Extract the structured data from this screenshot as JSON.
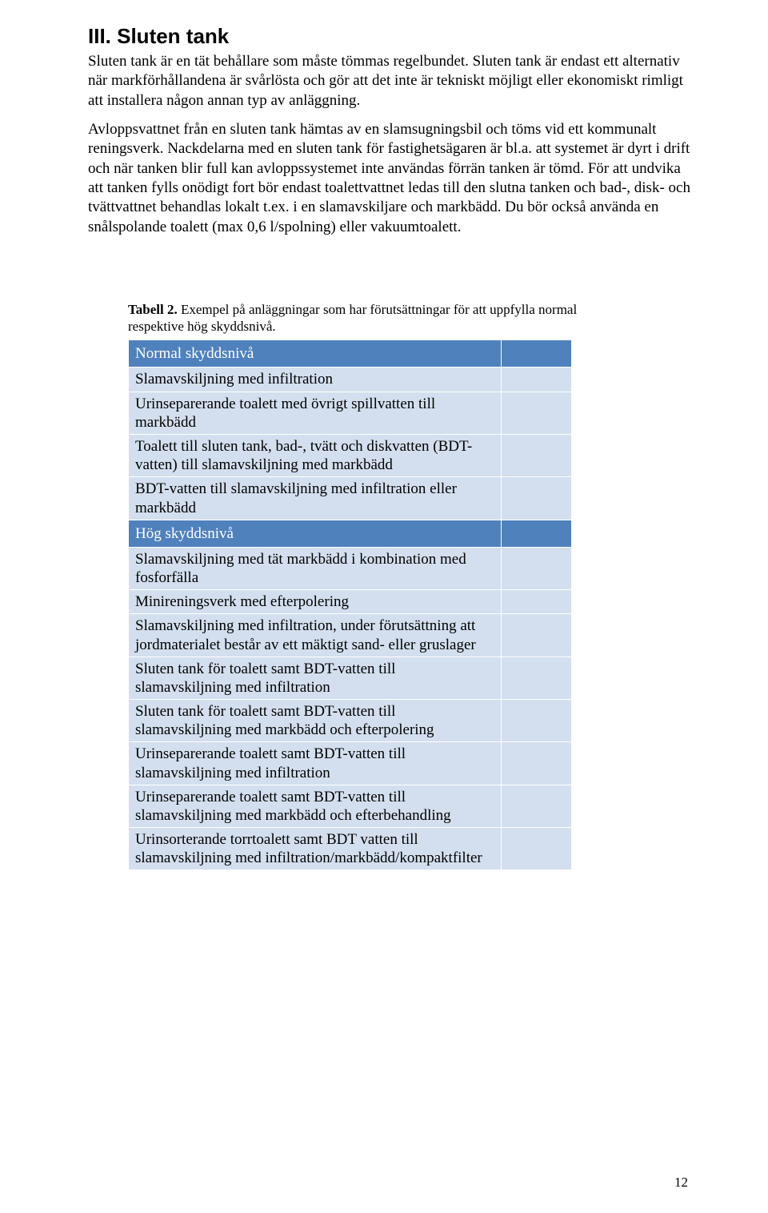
{
  "heading": "III. Sluten tank",
  "intro": "Sluten tank är en tät behållare som måste tömmas regelbundet. Sluten tank är endast ett alternativ när markförhållandena är svårlösta och gör att det inte är tekniskt möjligt eller ekonomiskt rimligt att installera någon annan typ av anläggning.",
  "body": "Avloppsvattnet från en sluten tank hämtas av en slamsugningsbil och töms vid ett kommunalt reningsverk. Nackdelarna med en sluten tank för fastighetsägaren är bl.a. att systemet är dyrt i drift och när tanken blir full kan avloppssystemet inte användas förrän tanken är tömd. För att undvika att tanken fylls onödigt fort bör endast toalettvattnet ledas till den slutna tanken och bad-, disk- och tvättvattnet behandlas lokalt t.ex. i en slamavskiljare och markbädd. Du bör också använda en snålspolande toalett (max 0,6 l/spolning) eller vakuumtoalett.",
  "caption_bold": "Tabell 2.",
  "caption_rest": " Exempel på anläggningar som har förutsättningar för att uppfylla normal respektive hög skyddsnivå.",
  "table": {
    "header_bg": "#4f81bd",
    "header_color": "#ffffff",
    "row_bg": "#d3dfee",
    "border_color": "#ffffff",
    "sections": [
      {
        "title": "Normal skyddsnivå",
        "rows": [
          "Slamavskiljning med infiltration",
          "Urinseparerande toalett med övrigt spillvatten till markbädd",
          "Toalett till sluten tank, bad-, tvätt och diskvatten (BDT-vatten) till slamavskiljning med markbädd",
          "BDT-vatten till slamavskiljning med infiltration eller markbädd"
        ]
      },
      {
        "title": "Hög skyddsnivå",
        "rows": [
          "Slamavskiljning med tät markbädd i kombination med fosforfälla",
          "Minireningsverk med efterpolering",
          "Slamavskiljning med infiltration, under förutsättning att jordmaterialet består av ett mäktigt sand- eller gruslager",
          "Sluten tank för toalett samt BDT-vatten till slamavskiljning med infiltration",
          "Sluten tank för toalett samt BDT-vatten till slamavskiljning med markbädd och efterpolering",
          "Urinseparerande toalett samt BDT-vatten till slamavskiljning med infiltration",
          "Urinseparerande toalett samt BDT-vatten till slamavskiljning med markbädd och efterbehandling",
          "Urinsorterande torrtoalett samt BDT vatten till slamavskiljning med infiltration/markbädd/kompaktfilter"
        ]
      }
    ]
  },
  "page_number": "12"
}
